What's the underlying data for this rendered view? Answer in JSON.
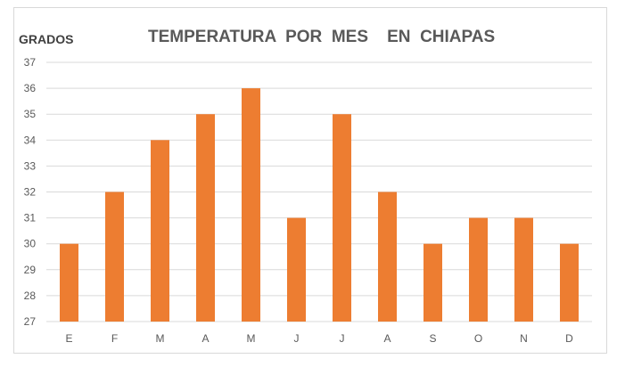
{
  "chart_data": {
    "type": "bar",
    "title": "TEMPERATURA  POR  MES    EN  CHIAPAS",
    "ylabel": "GRADOS",
    "xlabel": "",
    "categories": [
      "E",
      "F",
      "M",
      "A",
      "M",
      "J",
      "J",
      "A",
      "S",
      "O",
      "N",
      "D"
    ],
    "values": [
      30,
      32,
      34,
      35,
      36,
      31,
      35,
      32,
      30,
      31,
      31,
      30
    ],
    "ylim": [
      27,
      37
    ],
    "yticks": [
      "27",
      "28",
      "29",
      "30",
      "31",
      "32",
      "33",
      "34",
      "35",
      "36",
      "37"
    ],
    "grid": true,
    "legend": "none",
    "bar_color": "#ED7D31",
    "grid_color": "#D9D9D9"
  }
}
